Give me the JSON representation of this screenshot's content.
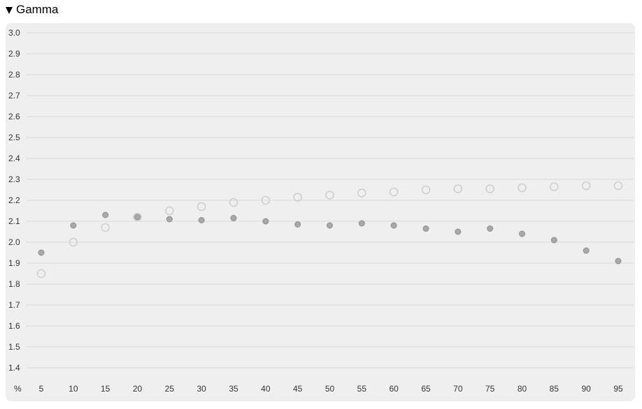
{
  "section": {
    "title": "Gamma"
  },
  "chart_data": {
    "type": "scatter",
    "title": "",
    "xlabel": "%",
    "ylabel": "",
    "x": [
      5,
      10,
      15,
      20,
      25,
      30,
      35,
      40,
      45,
      50,
      55,
      60,
      65,
      70,
      75,
      80,
      85,
      90,
      95
    ],
    "x_tick_labels": [
      "5",
      "10",
      "15",
      "20",
      "25",
      "30",
      "35",
      "40",
      "45",
      "50",
      "55",
      "60",
      "65",
      "70",
      "75",
      "80",
      "85",
      "90",
      "95"
    ],
    "y_ticks": [
      1.4,
      1.5,
      1.6,
      1.7,
      1.8,
      1.9,
      2.0,
      2.1,
      2.2,
      2.3,
      2.4,
      2.5,
      2.6,
      2.7,
      2.8,
      2.9,
      3.0
    ],
    "y_tick_labels": [
      "1.4",
      "1.5",
      "1.6",
      "1.7",
      "1.8",
      "1.9",
      "2.0",
      "2.1",
      "2.2",
      "2.3",
      "2.4",
      "2.5",
      "2.6",
      "2.7",
      "2.8",
      "2.9",
      "3.0"
    ],
    "ylim": [
      1.4,
      3.0
    ],
    "grid": true,
    "legend": "none",
    "series": [
      {
        "marker": "filled-circle",
        "color": "#a8a8a8",
        "values": [
          1.95,
          2.08,
          2.13,
          2.12,
          2.11,
          2.105,
          2.115,
          2.1,
          2.085,
          2.08,
          2.09,
          2.08,
          2.065,
          2.05,
          2.065,
          2.04,
          2.01,
          1.96,
          1.91
        ]
      },
      {
        "marker": "hollow-circle",
        "color": "#cfcfcf",
        "values": [
          1.85,
          2.0,
          2.07,
          2.12,
          2.15,
          2.17,
          2.19,
          2.2,
          2.215,
          2.225,
          2.235,
          2.24,
          2.25,
          2.255,
          2.255,
          2.26,
          2.265,
          2.27,
          2.27
        ]
      }
    ]
  }
}
